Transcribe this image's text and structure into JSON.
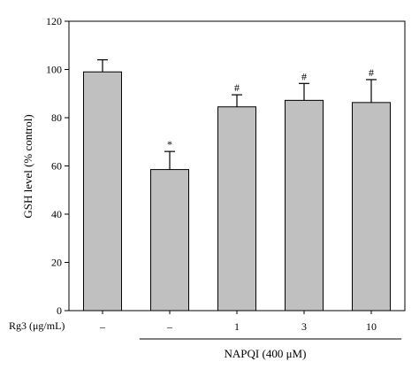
{
  "chart_data": {
    "type": "bar",
    "ylabel": "GSH level (% control)",
    "ylim": [
      0,
      120
    ],
    "yticks": [
      0,
      20,
      40,
      60,
      80,
      100,
      120
    ],
    "row_label": "Rg3 (μg/mL)",
    "categories": [
      "–",
      "–",
      "1",
      "3",
      "10"
    ],
    "values": [
      99,
      58.5,
      84.5,
      87.2,
      86.3
    ],
    "errors": [
      5,
      7.5,
      5,
      7,
      9.5
    ],
    "significance": [
      "",
      "*",
      "#",
      "#",
      "#"
    ],
    "group_label": "NAPQI (400 μM)",
    "group_span": [
      1,
      4
    ],
    "grid": false,
    "colors": {
      "bar": "#c0c0c0",
      "stroke": "#000000"
    }
  }
}
